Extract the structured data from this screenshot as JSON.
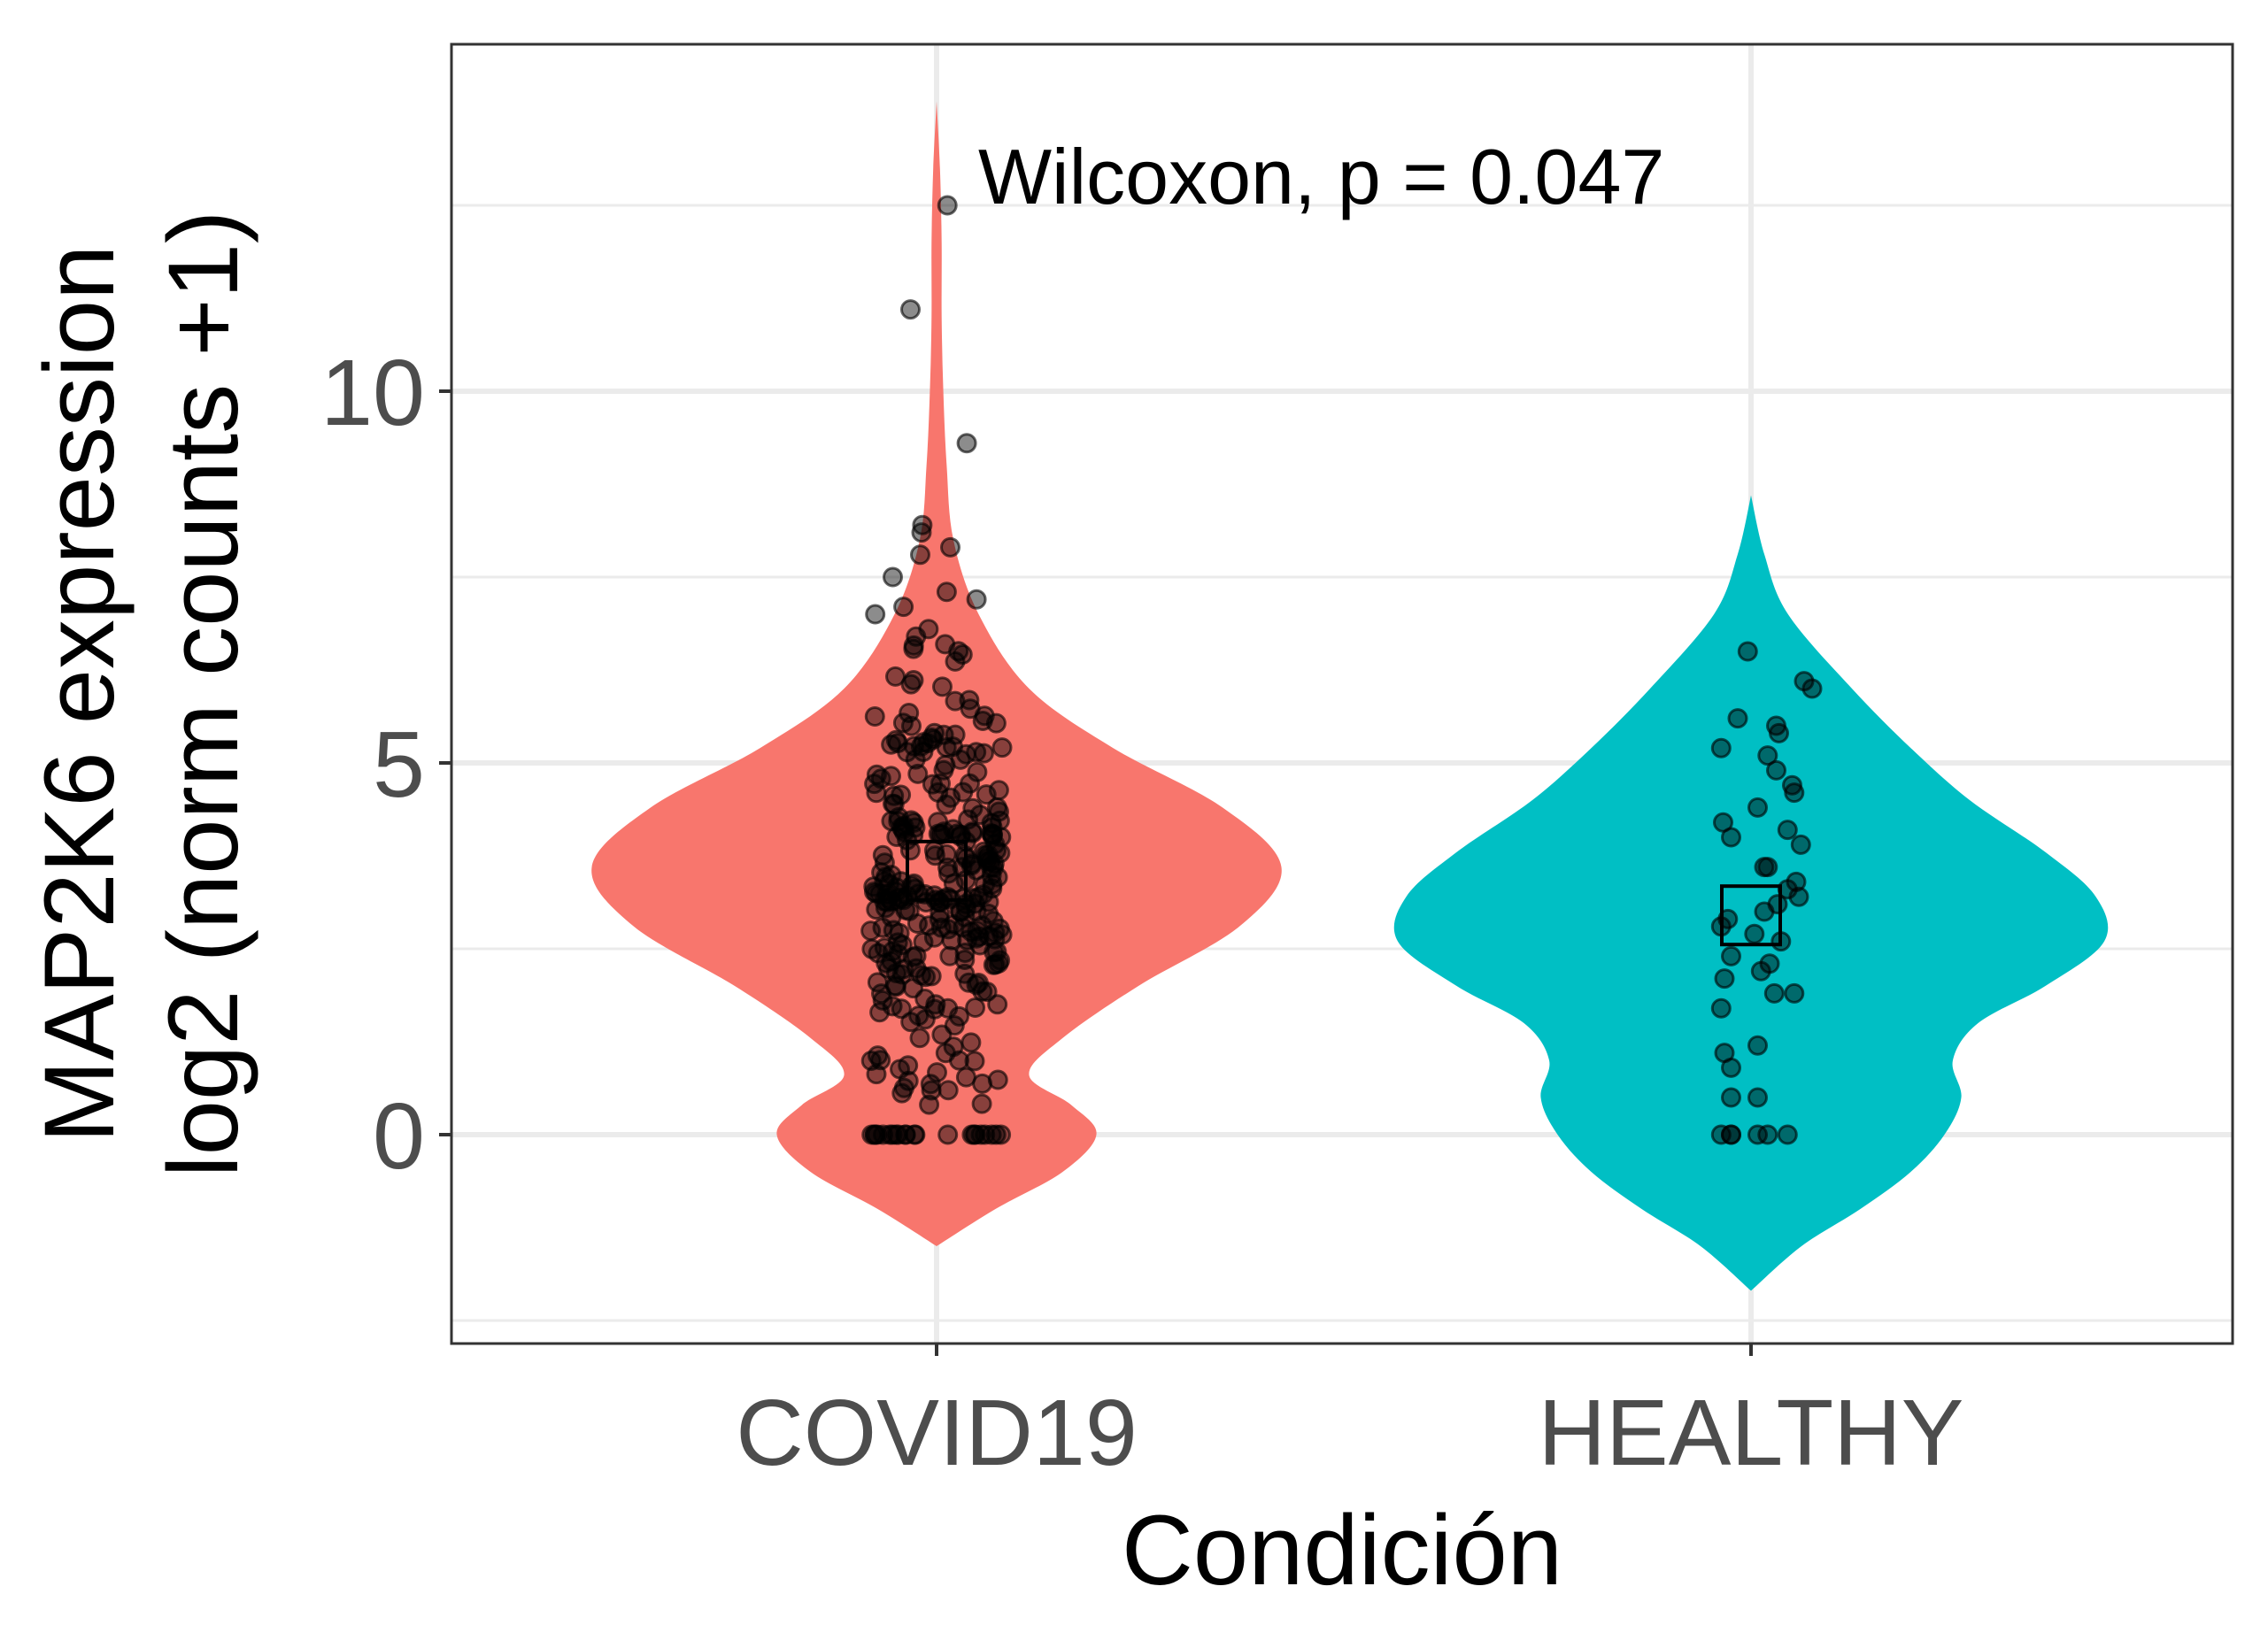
{
  "chart_data": {
    "type": "violin",
    "xlabel": "Condición",
    "ylabel_line1": "MAP2K6 expression",
    "ylabel_line2": "log2 (norm counts +1)",
    "ylim": [
      -2.5,
      14.5
    ],
    "yticks": [
      0,
      5,
      10
    ],
    "yticks_minor": [
      -2.5,
      2.5,
      7.5,
      12.5
    ],
    "grid": true,
    "annotation": "Wilcoxon, p = 0.047",
    "categories": [
      "COVID19",
      "HEALTHY"
    ],
    "colors": {
      "COVID19": "#F8766D",
      "HEALTHY": "#00BFC4"
    },
    "series": [
      {
        "name": "COVID19",
        "mean": 3.55,
        "range": [
          -1.5,
          13.9
        ],
        "density": [
          [
            -1.5,
            0.0
          ],
          [
            -1.0,
            0.35
          ],
          [
            -0.5,
            0.75
          ],
          [
            0.0,
            0.95
          ],
          [
            0.4,
            0.8
          ],
          [
            0.8,
            0.55
          ],
          [
            1.3,
            0.75
          ],
          [
            2.0,
            1.2
          ],
          [
            2.8,
            1.8
          ],
          [
            3.6,
            2.05
          ],
          [
            4.4,
            1.7
          ],
          [
            5.2,
            1.05
          ],
          [
            6.0,
            0.55
          ],
          [
            7.0,
            0.25
          ],
          [
            8.0,
            0.1
          ],
          [
            9.0,
            0.06
          ],
          [
            10.0,
            0.04
          ],
          [
            11.0,
            0.03
          ],
          [
            12.0,
            0.03
          ],
          [
            13.0,
            0.02
          ],
          [
            13.9,
            0.0
          ]
        ],
        "n_points": 330,
        "n_zero": 22,
        "outliers": [
          12.5,
          11.1,
          9.3,
          8.2,
          8.1,
          7.9,
          7.8,
          7.5,
          7.3,
          7.2,
          7.1,
          7.0,
          6.8,
          6.7
        ]
      },
      {
        "name": "HEALTHY",
        "mean": 2.95,
        "range": [
          -2.1,
          8.6
        ],
        "density": [
          [
            -2.1,
            0.0
          ],
          [
            -1.5,
            0.3
          ],
          [
            -1.0,
            0.65
          ],
          [
            -0.5,
            0.95
          ],
          [
            0.0,
            1.15
          ],
          [
            0.5,
            1.25
          ],
          [
            1.0,
            1.2
          ],
          [
            1.5,
            1.35
          ],
          [
            2.0,
            1.75
          ],
          [
            2.6,
            2.1
          ],
          [
            3.2,
            2.05
          ],
          [
            3.8,
            1.75
          ],
          [
            4.5,
            1.3
          ],
          [
            5.2,
            0.95
          ],
          [
            6.0,
            0.6
          ],
          [
            7.0,
            0.22
          ],
          [
            7.8,
            0.08
          ],
          [
            8.6,
            0.0
          ]
        ],
        "points": [
          [
            0.0,
            -0.45
          ],
          [
            0.0,
            -0.3
          ],
          [
            0.0,
            -0.3
          ],
          [
            0.0,
            0.1
          ],
          [
            0.0,
            0.25
          ],
          [
            0.0,
            0.55
          ],
          [
            0.5,
            -0.3
          ],
          [
            0.5,
            0.1
          ],
          [
            0.9,
            -0.3
          ],
          [
            1.2,
            0.1
          ],
          [
            1.1,
            -0.4
          ],
          [
            1.7,
            -0.45
          ],
          [
            1.9,
            0.35
          ],
          [
            1.9,
            0.65
          ],
          [
            2.1,
            -0.4
          ],
          [
            2.2,
            0.15
          ],
          [
            2.4,
            -0.3
          ],
          [
            2.3,
            0.28
          ],
          [
            2.6,
            0.45
          ],
          [
            2.7,
            0.05
          ],
          [
            2.9,
            -0.35
          ],
          [
            2.8,
            -0.45
          ],
          [
            3.0,
            0.2
          ],
          [
            3.1,
            0.4
          ],
          [
            3.2,
            0.72
          ],
          [
            3.3,
            0.55
          ],
          [
            3.4,
            0.68
          ],
          [
            3.6,
            0.2
          ],
          [
            3.6,
            0.25
          ],
          [
            3.9,
            0.75
          ],
          [
            4.0,
            -0.3
          ],
          [
            4.1,
            0.55
          ],
          [
            4.2,
            -0.42
          ],
          [
            4.4,
            0.1
          ],
          [
            4.6,
            0.65
          ],
          [
            4.7,
            0.62
          ],
          [
            4.9,
            0.38
          ],
          [
            5.1,
            0.25
          ],
          [
            5.2,
            -0.45
          ],
          [
            5.4,
            0.42
          ],
          [
            5.5,
            0.38
          ],
          [
            5.6,
            -0.2
          ],
          [
            6.0,
            0.92
          ],
          [
            6.1,
            0.8
          ],
          [
            6.5,
            -0.05
          ]
        ]
      }
    ]
  }
}
